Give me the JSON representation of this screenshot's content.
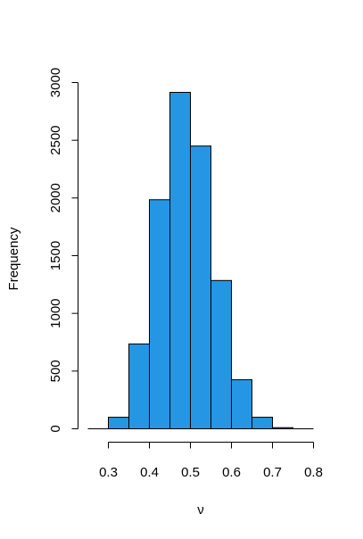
{
  "chart_data": {
    "type": "bar",
    "title": "",
    "xlabel": "ν",
    "ylabel": "Frequency",
    "bar_color": "#2596e4",
    "grid": false,
    "legend": "none",
    "xlim": [
      0.25,
      0.8
    ],
    "ylim": [
      0,
      3000
    ],
    "x_ticks": [
      "0.3",
      "0.4",
      "0.5",
      "0.6",
      "0.7",
      "0.8"
    ],
    "y_ticks": [
      "0",
      "500",
      "1000",
      "1500",
      "2000",
      "2500",
      "3000"
    ],
    "bins": [
      {
        "start": 0.25,
        "end": 0.3,
        "count": 0
      },
      {
        "start": 0.3,
        "end": 0.35,
        "count": 100
      },
      {
        "start": 0.35,
        "end": 0.4,
        "count": 735
      },
      {
        "start": 0.4,
        "end": 0.45,
        "count": 1985
      },
      {
        "start": 0.45,
        "end": 0.5,
        "count": 2915
      },
      {
        "start": 0.5,
        "end": 0.55,
        "count": 2450
      },
      {
        "start": 0.55,
        "end": 0.6,
        "count": 1285
      },
      {
        "start": 0.6,
        "end": 0.65,
        "count": 425
      },
      {
        "start": 0.65,
        "end": 0.7,
        "count": 100
      },
      {
        "start": 0.7,
        "end": 0.75,
        "count": 10
      },
      {
        "start": 0.75,
        "end": 0.8,
        "count": 0
      }
    ]
  }
}
